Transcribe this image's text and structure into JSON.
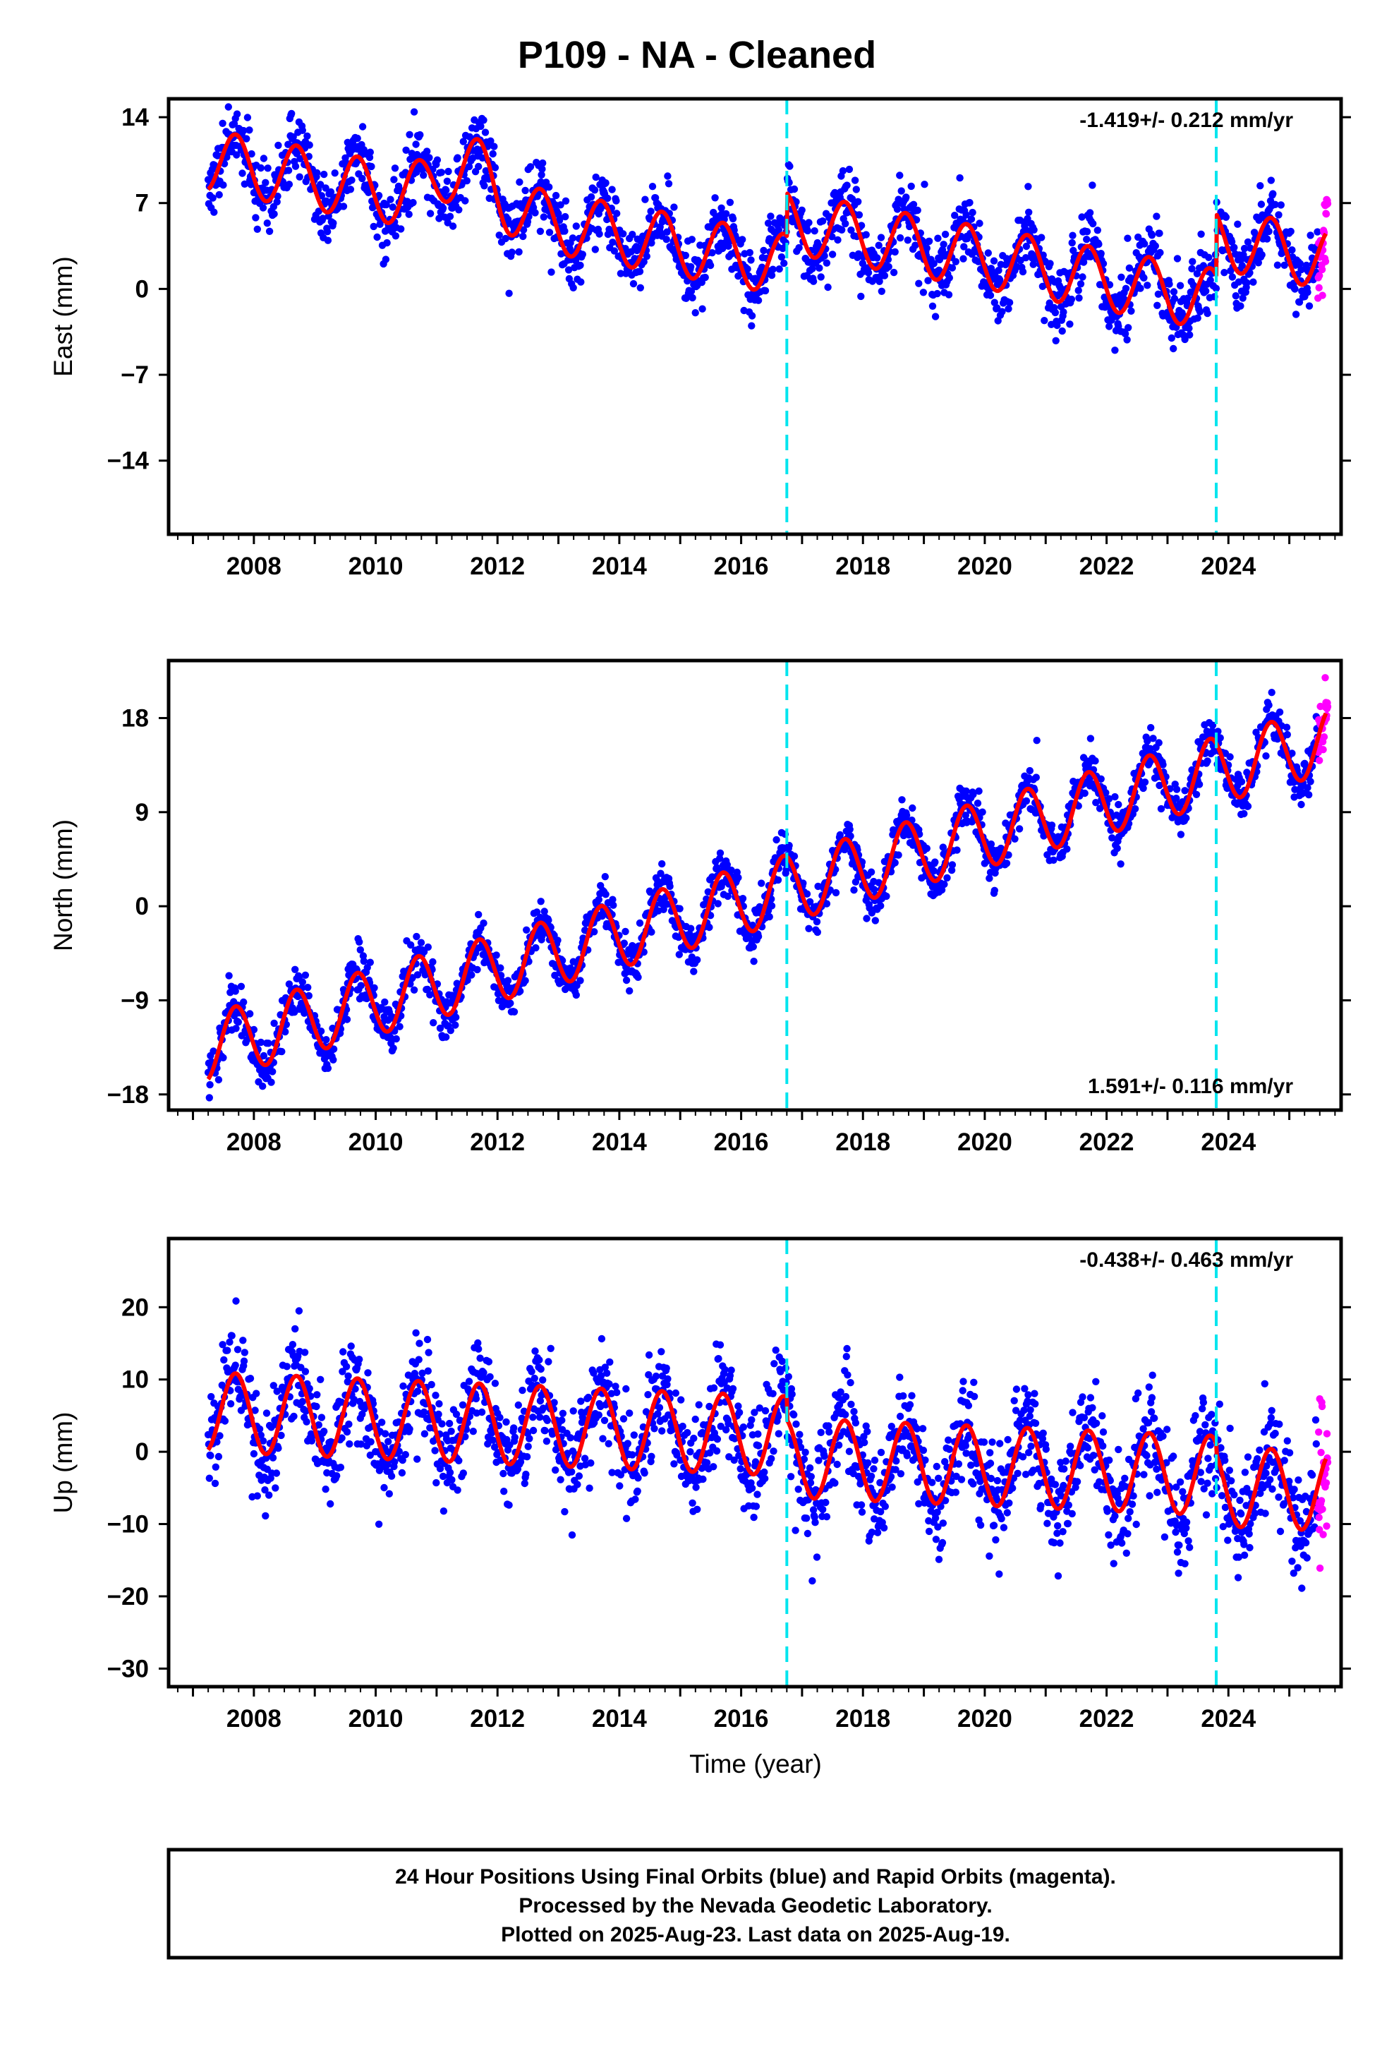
{
  "title": "P109  - NA - Cleaned",
  "x_axis_title": "Time (year)",
  "footer": {
    "lines": [
      "24 Hour Positions Using Final Orbits (blue) and Rapid Orbits (magenta).",
      "Processed by the Nevada Geodetic Laboratory.",
      "Plotted on 2025-Aug-23. Last data on 2025-Aug-19."
    ]
  },
  "colors": {
    "final_orbits": "#0000ff",
    "rapid_orbits": "#ff00ff",
    "model_fit": "#ff0000",
    "event_line": "#00e5ee"
  },
  "chart_data": [
    {
      "type": "scatter",
      "ylabel": "East (mm)",
      "xlim": [
        2006.6,
        2025.85
      ],
      "ylim": [
        -20,
        15.5
      ],
      "yticks": [
        14,
        7,
        0,
        -7,
        -14
      ],
      "ytick_labels": [
        "14",
        "7",
        "0",
        "−7",
        "−14"
      ],
      "xticks": [
        2008,
        2010,
        2012,
        2014,
        2016,
        2018,
        2020,
        2022,
        2024
      ],
      "rate_label": "-1.419+/- 0.212 mm/yr",
      "rate_position": "top-right",
      "event_lines_x": [
        2016.75,
        2023.8
      ],
      "series": [
        {
          "name": "final orbits",
          "color": "#0000ff",
          "start": 2007.25,
          "end": 2025.47
        },
        {
          "name": "rapid orbits",
          "color": "#ff00ff",
          "start": 2025.47,
          "end": 2025.63
        }
      ],
      "model_fit": {
        "start": 2007.25,
        "end": 2025.6,
        "linear_anchor": [
          2007.25,
          10.5
        ],
        "rate": -0.9,
        "annual_amplitude": 2.5,
        "offsets": [
          {
            "year": 2011.5,
            "value": 3.5,
            "type": "transient",
            "width": 0.6
          },
          {
            "year": 2016.75,
            "value": 3.5
          },
          {
            "year": 2023.8,
            "value": 5.0
          }
        ]
      },
      "scatter_noise": 1.4
    },
    {
      "type": "scatter",
      "ylabel": "North (mm)",
      "xlim": [
        2006.6,
        2025.85
      ],
      "ylim": [
        -19.5,
        23.5
      ],
      "yticks": [
        18,
        9,
        0,
        -9,
        -18
      ],
      "ytick_labels": [
        "18",
        "9",
        "0",
        "−9",
        "−18"
      ],
      "xticks": [
        2008,
        2010,
        2012,
        2014,
        2016,
        2018,
        2020,
        2022,
        2024
      ],
      "rate_label": "1.591+/- 0.116 mm/yr",
      "rate_position": "bottom-right",
      "event_lines_x": [
        2016.75,
        2023.8
      ],
      "series": [
        {
          "name": "final orbits",
          "color": "#0000ff",
          "start": 2007.25,
          "end": 2025.47
        },
        {
          "name": "rapid orbits",
          "color": "#ff00ff",
          "start": 2025.47,
          "end": 2025.63
        }
      ],
      "model_fit": {
        "start": 2007.25,
        "end": 2025.6,
        "linear_anchor": [
          2007.25,
          -13.5
        ],
        "rate": 1.6,
        "annual_amplitude": 3.2,
        "offsets": []
      },
      "scatter_noise": 1.1
    },
    {
      "type": "scatter",
      "ylabel": "Up (mm)",
      "xlim": [
        2006.6,
        2025.85
      ],
      "ylim": [
        -32.5,
        29.5
      ],
      "yticks": [
        20,
        10,
        0,
        -10,
        -20,
        -30
      ],
      "ytick_labels": [
        "20",
        "10",
        "0",
        "−10",
        "−20",
        "−30"
      ],
      "xticks": [
        2008,
        2010,
        2012,
        2014,
        2016,
        2018,
        2020,
        2022,
        2024
      ],
      "rate_label": "-0.438+/- 0.463 mm/yr",
      "rate_position": "top-right",
      "event_lines_x": [
        2016.75,
        2023.8
      ],
      "series": [
        {
          "name": "final orbits",
          "color": "#0000ff",
          "start": 2007.25,
          "end": 2025.47
        },
        {
          "name": "rapid orbits",
          "color": "#ff00ff",
          "start": 2025.47,
          "end": 2025.63
        }
      ],
      "model_fit": {
        "start": 2007.25,
        "end": 2025.6,
        "linear_anchor": [
          2007.25,
          5.5
        ],
        "rate": -0.35,
        "annual_amplitude": 5.5,
        "offsets": [
          {
            "year": 2016.75,
            "value": -3.0
          },
          {
            "year": 2023.8,
            "value": -1.5
          }
        ]
      },
      "scatter_noise": 3.6
    }
  ]
}
